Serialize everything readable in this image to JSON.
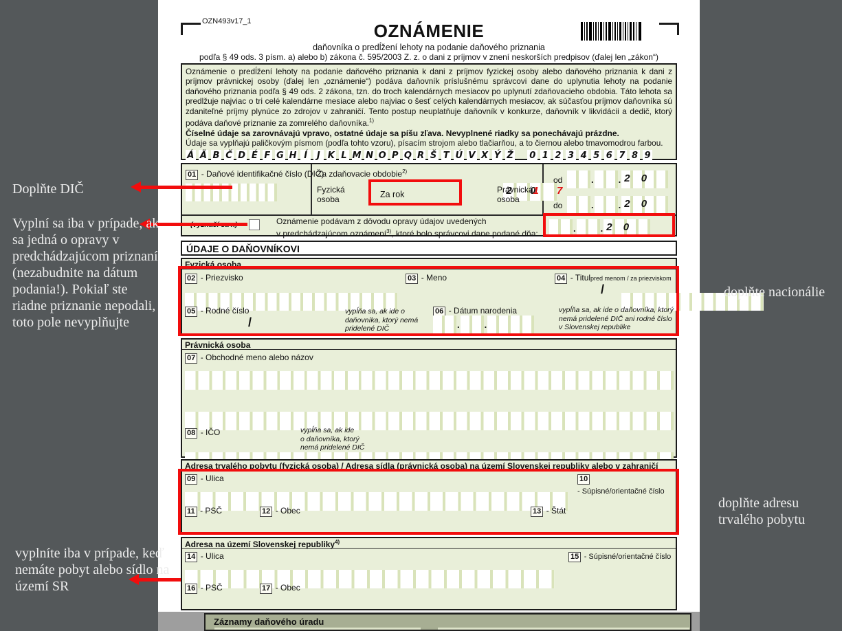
{
  "header": {
    "form_code": "OZN493v17_1",
    "title": "OZNÁMENIE",
    "subtitle": "daňovníka o predĺžení lehoty na podanie daňového priznania",
    "law_line": "podľa § 49 ods. 3 písm. a) alebo b) zákona č. 595/2003 Z. z. o dani z príjmov v znení neskorších predpisov (ďalej len „zákon“)"
  },
  "intro": {
    "paragraph": "Oznámenie o predĺžení lehoty na podanie daňového priznania k dani z príjmov fyzickej osoby alebo daňového priznania k dani z príjmov právnickej osoby (ďalej len „oznámenie“) podáva daňovník príslušnému správcovi dane do uplynutia lehoty na podanie daňového priznania podľa § 49 ods. 2 zákona, tzn. do troch kalendárnych mesiacov po uplynutí zdaňovacieho obdobia. Táto lehota sa predlžuje najviac o tri celé kalendárne mesiace alebo najviac o šesť celých kalendárnych mesiacov, ak súčasťou príjmov daňovníka sú zdaniteľné príjmy plynúce zo zdrojov v zahraničí. Tento postup neuplatňuje daňovník v konkurze, daňovník v likvidácii a dedič, ktorý podáva daňové priznanie za zomrelého daňovníka.",
    "footnote_mark": "1)",
    "bold_note": "Číselné údaje sa zarovnávajú vpravo, ostatné údaje sa píšu zľava. Nevyplnené riadky sa ponechávajú prázdne.",
    "sample_note": "Údaje sa vyplňajú paličkovým písmom (podľa tohto vzoru), písacím strojom alebo tlačiarňou, a to čiernou alebo tmavomodrou farbou.",
    "alphabet_cells": [
      "Á",
      "Ä",
      "B",
      "Č",
      "D",
      "É",
      "F",
      "G",
      "H",
      "Í",
      "J",
      "K",
      "L",
      "M",
      "N",
      "O",
      "P",
      "Q",
      "R",
      "Š",
      "T",
      "Ú",
      "V",
      "X",
      "Ý",
      "Ž",
      "",
      "0",
      "1",
      "2",
      "3",
      "4",
      "5",
      "6",
      "7",
      "8",
      "9"
    ]
  },
  "box01": {
    "f01_num": "01",
    "f01_label": "- Daňové identifikačné číslo (DIČ)",
    "tax_period_label": "Za zdaňovacie obdobie",
    "tax_period_sup": "2)",
    "fyzicka": "Fyzická osoba",
    "za_rok": "Za rok",
    "year_black": "2 0",
    "year_red": "1 7",
    "pravnicka": "Právnická osoba",
    "od": "od",
    "do": "do",
    "century": "2 0",
    "dot": ".",
    "vyznaci": "(vyznačí sa x)",
    "correction_line1": "Oznámenie podávam z dôvodu opravy údajov uvedených",
    "correction_line2a": "v predchádzajúcom oznámení",
    "correction_sup": "3)",
    "correction_line2b": ", ktoré bolo správcovi dane podané dňa:"
  },
  "sections": {
    "udaje": "ÚDAJE O DAŇOVNÍKOVI",
    "fyzicka": "Fyzická osoba",
    "pravnicka": "Právnická osoba",
    "adresa1": "Adresa trvalého pobytu (fyzická osoba) / Adresa sídla (právnická osoba) na území Slovenskej republiky alebo v zahraničí",
    "adresa2": "Adresa na území Slovenskej republiky",
    "adresa2_sup": "4)",
    "zaznamy": "Záznamy daňového úradu"
  },
  "fields": {
    "f02": {
      "num": "02",
      "label": "- Priezvisko"
    },
    "f03": {
      "num": "03",
      "label": "- Meno"
    },
    "f04": {
      "num": "04",
      "label": "- Titul",
      "small": "pred menom / za priezviskom"
    },
    "f05": {
      "num": "05",
      "label": "- Rodné číslo"
    },
    "f06": {
      "num": "06",
      "label": "- Dátum narodenia"
    },
    "f07": {
      "num": "07",
      "label": "- Obchodné meno alebo názov"
    },
    "f08": {
      "num": "08",
      "label": "- IČO"
    },
    "f09": {
      "num": "09",
      "label": "- Ulica"
    },
    "f10": {
      "num": "10",
      "label": "- Súpisné/orientačné číslo"
    },
    "f11": {
      "num": "11",
      "label": "- PSČ"
    },
    "f12": {
      "num": "12",
      "label": "- Obec"
    },
    "f13": {
      "num": "13",
      "label": "- Štát"
    },
    "f14": {
      "num": "14",
      "label": "- Ulica"
    },
    "f15": {
      "num": "15",
      "label": "- Súpisné/orientačné číslo"
    },
    "f16": {
      "num": "16",
      "label": "- PSČ"
    },
    "f17": {
      "num": "17",
      "label": "- Obec"
    }
  },
  "notes": {
    "slash": "/",
    "no_dic": "vypĺňa sa, ak ide o daňovníka, ktorý nemá pridelené DIČ",
    "no_dic_multiline": "vypĺňa sa, ak ide\no daňovníka, ktorý\nnemá pridelené DIČ",
    "no_dic_rc": "vypĺňa sa, ak ide o daňovníka, ktorý nemá pridelené DIČ ani rodné číslo v Slovenskej republike"
  },
  "annotations": {
    "left_dic": "Doplňte DIČ",
    "left_oprava": "Vyplní sa iba v prípade, ak sa jedná o opravy v predchádzajúcom priznaní (nezabudnite na dátum podania!). Pokiaľ ste riadne priznanie nepodali, toto pole nevyplňujte",
    "left_adresa_sr": "vyplníte iba v prípade, keď nemáte pobyt alebo sídlo na území SR",
    "right_nacionalie": "doplňte nacionálie",
    "right_adresa": "doplňte adresu trvalého pobytu"
  },
  "colors": {
    "background_gray": "#54585a",
    "form_green": "#e9efd9",
    "annotation_red": "#f20d0d",
    "band_gray": "#9e9e9e",
    "zaznamy_fill": "#a7ae93"
  }
}
